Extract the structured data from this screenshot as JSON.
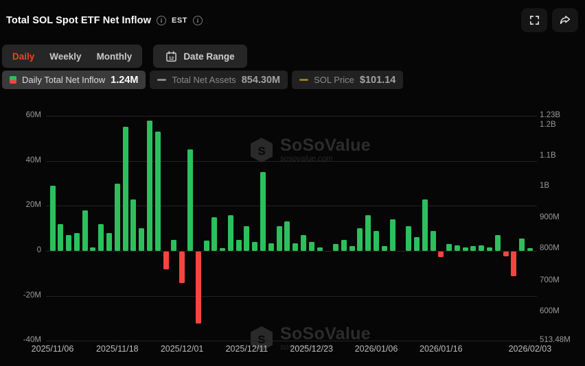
{
  "header": {
    "title": "Total SOL Spot ETF Net Inflow",
    "timezone_label": "EST"
  },
  "actions": {
    "fullscreen_icon": "fullscreen-expand",
    "share_icon": "share-arrow"
  },
  "toolbar": {
    "tabs": [
      {
        "label": "Daily",
        "active": true
      },
      {
        "label": "Weekly",
        "active": false
      },
      {
        "label": "Monthly",
        "active": false
      }
    ],
    "date_range_label": "Date Range",
    "calendar_day": "12"
  },
  "legend": [
    {
      "label": "Daily Total Net Inflow",
      "value": "1.24M",
      "enabled": true,
      "icon": "green-red-candle",
      "icon_colors": [
        "#2cc05c",
        "#f4453e"
      ]
    },
    {
      "label": "Total Net Assets",
      "value": "854.30M",
      "enabled": false,
      "icon": "dash",
      "icon_color": "#8a8a8a"
    },
    {
      "label": "SOL Price",
      "value": "$101.14",
      "enabled": false,
      "icon": "dash",
      "icon_color": "#9a7b1e"
    }
  ],
  "watermark": {
    "name": "SoSoValue",
    "url": "sosovalue.com"
  },
  "colors": {
    "positive": "#2cc05c",
    "negative": "#f4453e",
    "active_tab": "#ee4423",
    "background": "#060606",
    "grid": "#242424",
    "axis_text": "#9a9a9a"
  },
  "chart_data": {
    "type": "bar",
    "title": "Total SOL Spot ETF Net Inflow",
    "unit": "USD millions",
    "values": [
      29,
      12,
      7,
      8,
      18,
      1.5,
      12,
      8,
      30,
      55,
      23,
      10,
      58,
      53,
      -8,
      5,
      -14,
      45,
      -32,
      4.5,
      15,
      1.2,
      16,
      5,
      11,
      4,
      35,
      3.5,
      11,
      13,
      3.5,
      7,
      4,
      1.5,
      0,
      3,
      5,
      2,
      10,
      16,
      9,
      2,
      14,
      0,
      11,
      6,
      23,
      9,
      -2.5,
      3,
      2.5,
      1.5,
      2,
      2.5,
      1.5,
      7,
      -2,
      -11,
      5.5,
      1.24
    ],
    "x_tick_labels": [
      "2025/11/06",
      "2025/11/18",
      "2025/12/01",
      "2025/12/11",
      "2025/12/23",
      "2026/01/06",
      "2026/01/16",
      "2026/02/03"
    ],
    "x_tick_indices": [
      0,
      8,
      16,
      24,
      32,
      40,
      48,
      59
    ],
    "left_axis_tick_values": [
      60,
      40,
      20,
      0,
      -20,
      -40
    ],
    "left_axis_tick_labels": [
      "60M",
      "40M",
      "20M",
      "0",
      "-20M",
      "-40M"
    ],
    "left_axis_range_m": [
      -40,
      60
    ],
    "right_axis_tick_labels": [
      "1.23B",
      "1.2B",
      "1.1B",
      "1B",
      "900M",
      "800M",
      "700M",
      "600M",
      "513.48M"
    ],
    "right_axis_range": [
      513.48,
      1230
    ],
    "grid": true,
    "legend_position": "top-left"
  }
}
